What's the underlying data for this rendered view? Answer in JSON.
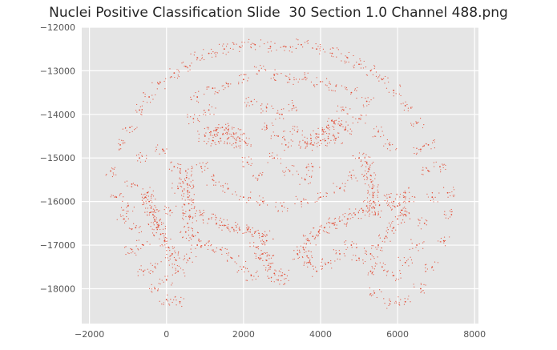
{
  "chart_data": {
    "type": "scatter",
    "title": "Nuclei Positive Classification Slide  30 Section 1.0 Channel 488.png",
    "xlabel": "",
    "ylabel": "",
    "xlim": [
      -2200,
      8100
    ],
    "ylim": [
      -18800,
      -12000
    ],
    "x_ticks": [
      -2000,
      0,
      2000,
      4000,
      6000,
      8000
    ],
    "x_tick_labels": [
      "−2000",
      "0",
      "2000",
      "4000",
      "6000",
      "8000"
    ],
    "y_ticks": [
      -12000,
      -13000,
      -14000,
      -15000,
      -16000,
      -17000,
      -18000
    ],
    "y_tick_labels": [
      "−12000",
      "−13000",
      "−14000",
      "−15000",
      "−16000",
      "−17000",
      "−18000"
    ],
    "grid": true,
    "legend": "none",
    "colors": {
      "points": "#E24A33",
      "plot_background": "#E5E5E5",
      "grid": "#FFFFFF",
      "tick_text": "#555555"
    },
    "series": [
      {
        "points": [
          [
            -1450,
            -15300
          ],
          [
            -1300,
            -15900
          ],
          [
            -1200,
            -14700
          ],
          [
            -1100,
            -16400
          ],
          [
            -950,
            -14300
          ],
          [
            -900,
            -17100
          ],
          [
            -700,
            -13900
          ],
          [
            -600,
            -17600
          ],
          [
            -450,
            -13600
          ],
          [
            -300,
            -18000
          ],
          [
            -200,
            -13300
          ],
          [
            0,
            -18250
          ],
          [
            200,
            -13050
          ],
          [
            350,
            -18300
          ],
          [
            500,
            -12900
          ],
          [
            800,
            -12700
          ],
          [
            1100,
            -12600
          ],
          [
            1500,
            -12500
          ],
          [
            1900,
            -12450
          ],
          [
            2300,
            -12400
          ],
          [
            2700,
            -12450
          ],
          [
            3100,
            -12450
          ],
          [
            3500,
            -12400
          ],
          [
            3900,
            -12500
          ],
          [
            4300,
            -12600
          ],
          [
            4700,
            -12700
          ],
          [
            5000,
            -12850
          ],
          [
            5300,
            -13000
          ],
          [
            5600,
            -13200
          ],
          [
            5900,
            -13450
          ],
          [
            6200,
            -13800
          ],
          [
            6500,
            -14200
          ],
          [
            6800,
            -14700
          ],
          [
            7100,
            -15200
          ],
          [
            7300,
            -15800
          ],
          [
            7400,
            -16300
          ],
          [
            7200,
            -16900
          ],
          [
            6900,
            -17500
          ],
          [
            6600,
            -18000
          ],
          [
            6200,
            -18300
          ],
          [
            5800,
            -18350
          ],
          [
            5400,
            -18100
          ],
          [
            -500,
            -15800
          ],
          [
            -450,
            -16000
          ],
          [
            -400,
            -16150
          ],
          [
            -350,
            -16300
          ],
          [
            -300,
            -16450
          ],
          [
            -250,
            -16600
          ],
          [
            -150,
            -16750
          ],
          [
            -50,
            -16900
          ],
          [
            50,
            -17050
          ],
          [
            150,
            -17200
          ],
          [
            250,
            -17350
          ],
          [
            -550,
            -15900
          ],
          [
            -420,
            -16250
          ],
          [
            -200,
            -16550
          ],
          [
            500,
            -15300
          ],
          [
            520,
            -15450
          ],
          [
            540,
            -15600
          ],
          [
            550,
            -15750
          ],
          [
            560,
            -15900
          ],
          [
            580,
            -16050
          ],
          [
            600,
            -16200
          ],
          [
            620,
            -16350
          ],
          [
            550,
            -16500
          ],
          [
            500,
            -16700
          ],
          [
            900,
            -16300
          ],
          [
            1100,
            -16400
          ],
          [
            1300,
            -16500
          ],
          [
            1500,
            -16550
          ],
          [
            1700,
            -16600
          ],
          [
            1900,
            -16650
          ],
          [
            2100,
            -16650
          ],
          [
            2300,
            -16700
          ],
          [
            2500,
            -16800
          ],
          [
            2600,
            -16900
          ],
          [
            3700,
            -16900
          ],
          [
            3800,
            -16800
          ],
          [
            3950,
            -16700
          ],
          [
            4100,
            -16600
          ],
          [
            4300,
            -16500
          ],
          [
            4500,
            -16450
          ],
          [
            4700,
            -16400
          ],
          [
            4900,
            -16300
          ],
          [
            5100,
            -16200
          ],
          [
            5200,
            -16100
          ],
          [
            5200,
            -15100
          ],
          [
            5250,
            -15250
          ],
          [
            5300,
            -15400
          ],
          [
            5320,
            -15550
          ],
          [
            5340,
            -15700
          ],
          [
            5360,
            -15850
          ],
          [
            5380,
            -16000
          ],
          [
            5400,
            -16150
          ],
          [
            5420,
            -16300
          ],
          [
            5800,
            -15900
          ],
          [
            5900,
            -16000
          ],
          [
            6000,
            -16100
          ],
          [
            6100,
            -16200
          ],
          [
            6200,
            -16300
          ],
          [
            6300,
            -16000
          ],
          [
            6200,
            -15800
          ],
          [
            6000,
            -16400
          ],
          [
            5900,
            -16600
          ],
          [
            5700,
            -16800
          ],
          [
            5500,
            -17000
          ],
          [
            5300,
            -17200
          ],
          [
            1000,
            -14500
          ],
          [
            1150,
            -14400
          ],
          [
            1300,
            -14350
          ],
          [
            1450,
            -14300
          ],
          [
            1600,
            -14350
          ],
          [
            1750,
            -14450
          ],
          [
            1900,
            -14550
          ],
          [
            2050,
            -14650
          ],
          [
            1200,
            -14600
          ],
          [
            1400,
            -14550
          ],
          [
            1600,
            -14550
          ],
          [
            1800,
            -14650
          ],
          [
            3600,
            -14650
          ],
          [
            3750,
            -14550
          ],
          [
            3900,
            -14450
          ],
          [
            4050,
            -14350
          ],
          [
            4200,
            -14250
          ],
          [
            4350,
            -14200
          ],
          [
            4500,
            -14250
          ],
          [
            4650,
            -14350
          ],
          [
            3800,
            -14700
          ],
          [
            4000,
            -14600
          ],
          [
            4200,
            -14550
          ],
          [
            4400,
            -14550
          ],
          [
            2500,
            -17200
          ],
          [
            2600,
            -17350
          ],
          [
            2700,
            -17500
          ],
          [
            2800,
            -17650
          ],
          [
            2900,
            -17800
          ],
          [
            3000,
            -17700
          ],
          [
            3400,
            -17200
          ],
          [
            3550,
            -17050
          ],
          [
            3650,
            -17250
          ],
          [
            3700,
            -17400
          ],
          [
            2350,
            -17050
          ],
          [
            2450,
            -17300
          ],
          [
            800,
            -13600
          ],
          [
            1200,
            -13400
          ],
          [
            1600,
            -13300
          ],
          [
            2000,
            -13200
          ],
          [
            2400,
            -13000
          ],
          [
            2800,
            -13100
          ],
          [
            3200,
            -13200
          ],
          [
            3600,
            -13150
          ],
          [
            4000,
            -13250
          ],
          [
            4400,
            -13350
          ],
          [
            4800,
            -13500
          ],
          [
            5200,
            -13700
          ],
          [
            700,
            -14100
          ],
          [
            1100,
            -13900
          ],
          [
            2200,
            -13700
          ],
          [
            2600,
            -13850
          ],
          [
            3000,
            -14000
          ],
          [
            3300,
            -13800
          ],
          [
            4600,
            -13900
          ],
          [
            5000,
            -14100
          ],
          [
            5500,
            -14400
          ],
          [
            5800,
            -14700
          ],
          [
            -100,
            -14800
          ],
          [
            200,
            -15200
          ],
          [
            300,
            -15700
          ],
          [
            100,
            -16200
          ],
          [
            900,
            -15200
          ],
          [
            1200,
            -15500
          ],
          [
            1600,
            -15700
          ],
          [
            2000,
            -15900
          ],
          [
            2500,
            -16000
          ],
          [
            3000,
            -16100
          ],
          [
            3500,
            -16000
          ],
          [
            4000,
            -15900
          ],
          [
            4500,
            -15700
          ],
          [
            4800,
            -15400
          ],
          [
            5000,
            -15000
          ],
          [
            -700,
            -15000
          ],
          [
            -900,
            -15600
          ],
          [
            -1000,
            -16100
          ],
          [
            -800,
            -16600
          ],
          [
            -600,
            -17000
          ],
          [
            -300,
            -17500
          ],
          [
            0,
            -17800
          ],
          [
            300,
            -17600
          ],
          [
            600,
            -17300
          ],
          [
            800,
            -17000
          ],
          [
            6600,
            -14800
          ],
          [
            6800,
            -15300
          ],
          [
            6900,
            -15900
          ],
          [
            6700,
            -16500
          ],
          [
            6500,
            -17000
          ],
          [
            6200,
            -17400
          ],
          [
            5900,
            -17700
          ],
          [
            5600,
            -17500
          ],
          [
            5300,
            -17600
          ],
          [
            5000,
            -17300
          ],
          [
            1400,
            -17100
          ],
          [
            1700,
            -17300
          ],
          [
            2000,
            -17500
          ],
          [
            2200,
            -17700
          ],
          [
            3900,
            -17600
          ],
          [
            4200,
            -17400
          ],
          [
            4500,
            -17200
          ],
          [
            4800,
            -17000
          ],
          [
            1000,
            -17000
          ],
          [
            700,
            -16800
          ],
          [
            2900,
            -14500
          ],
          [
            3100,
            -14700
          ],
          [
            2800,
            -15000
          ],
          [
            3200,
            -15300
          ],
          [
            2600,
            -14300
          ],
          [
            3400,
            -14400
          ],
          [
            2400,
            -15400
          ],
          [
            3600,
            -15500
          ],
          [
            2100,
            -15100
          ],
          [
            3800,
            -15200
          ]
        ]
      }
    ]
  }
}
